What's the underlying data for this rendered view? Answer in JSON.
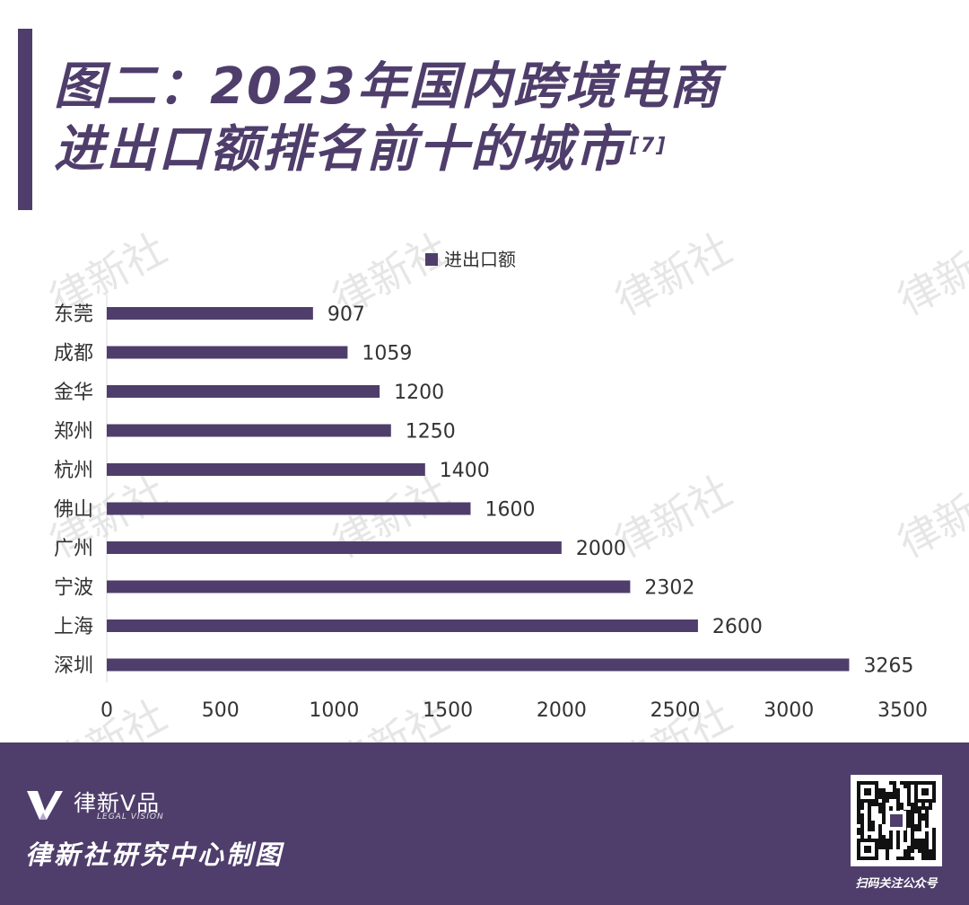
{
  "title": {
    "line1": "图二：2023年国内跨境电商",
    "line2": "进出口额排名前十的城市",
    "ref": "[7]"
  },
  "watermark_text": "律新社",
  "chart_data": {
    "type": "bar",
    "orientation": "horizontal",
    "categories": [
      "东莞",
      "成都",
      "金华",
      "郑州",
      "杭州",
      "佛山",
      "广州",
      "宁波",
      "上海",
      "深圳"
    ],
    "series": [
      {
        "name": "进出口额",
        "values": [
          907,
          1059,
          1200,
          1250,
          1400,
          1600,
          2000,
          2302,
          2600,
          3265
        ]
      }
    ],
    "xlim": [
      0,
      3500
    ],
    "xticks": [
      "0",
      "500",
      "1000",
      "1500",
      "2000",
      "2500",
      "3000",
      "3500"
    ],
    "legend_position": "top-center",
    "grid": false,
    "data_labels": true,
    "bar_color": "#4f3e6b"
  },
  "footer": {
    "logo_name": "律新V品",
    "logo_sub": "LEGAL VISION",
    "credit": "律新社研究中心制图",
    "qr_caption": "扫码关注公众号"
  },
  "colors": {
    "primary": "#4f3e6b",
    "text": "#333333",
    "watermark": "#e6e6e6"
  }
}
